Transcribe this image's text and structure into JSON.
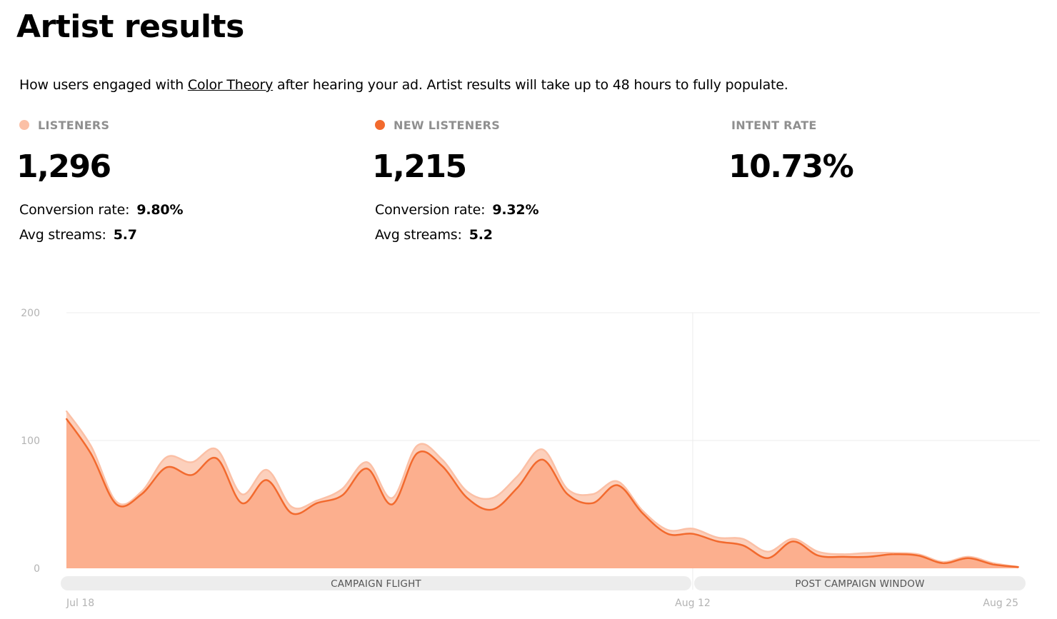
{
  "page": {
    "title": "Artist results",
    "intro_prefix": "How users engaged with ",
    "intro_link": "Color Theory",
    "intro_suffix": " after hearing your ad. Artist results will take up to 48 hours to fully populate."
  },
  "metrics": [
    {
      "label": "LISTENERS",
      "value": "1,296",
      "dot_color": "#fbc0a6",
      "conversion_label": "Conversion rate:",
      "conversion_value": "9.80%",
      "avg_label": "Avg streams:",
      "avg_value": "5.7"
    },
    {
      "label": "NEW LISTENERS",
      "value": "1,215",
      "dot_color": "#f26a2e",
      "conversion_label": "Conversion rate:",
      "conversion_value": "9.32%",
      "avg_label": "Avg streams:",
      "avg_value": "5.2"
    },
    {
      "label": "INTENT RATE",
      "value": "10.73%"
    }
  ],
  "colors": {
    "listeners": "#fbc0a6",
    "new_listeners_line": "#f26a2e",
    "new_listeners_fill": "#fcaf8e",
    "grid": "#ececec",
    "period_bar": "#ededed"
  },
  "chart_data": {
    "type": "area",
    "x": [
      "Jul 18",
      "Jul 19",
      "Jul 20",
      "Jul 21",
      "Jul 22",
      "Jul 23",
      "Jul 24",
      "Jul 25",
      "Jul 26",
      "Jul 27",
      "Jul 28",
      "Jul 29",
      "Jul 30",
      "Jul 31",
      "Aug 1",
      "Aug 2",
      "Aug 3",
      "Aug 4",
      "Aug 5",
      "Aug 6",
      "Aug 7",
      "Aug 8",
      "Aug 9",
      "Aug 10",
      "Aug 11",
      "Aug 12",
      "Aug 13",
      "Aug 14",
      "Aug 15",
      "Aug 16",
      "Aug 17",
      "Aug 18",
      "Aug 19",
      "Aug 20",
      "Aug 21",
      "Aug 22",
      "Aug 23",
      "Aug 24",
      "Aug 25"
    ],
    "x_tick_labels": [
      "Jul 18",
      "Aug 12",
      "Aug 25"
    ],
    "series": [
      {
        "name": "LISTENERS",
        "values": [
          123,
          95,
          52,
          60,
          87,
          83,
          93,
          58,
          77,
          48,
          53,
          62,
          83,
          55,
          96,
          85,
          60,
          55,
          72,
          93,
          62,
          58,
          68,
          45,
          30,
          31,
          24,
          23,
          13,
          23,
          13,
          11,
          12,
          12,
          11,
          5,
          9,
          4,
          1
        ]
      },
      {
        "name": "NEW LISTENERS",
        "values": [
          117,
          89,
          50,
          58,
          79,
          73,
          86,
          51,
          69,
          43,
          51,
          57,
          78,
          50,
          90,
          80,
          55,
          46,
          63,
          85,
          58,
          51,
          65,
          43,
          27,
          27,
          21,
          18,
          8,
          21,
          10,
          9,
          9,
          11,
          10,
          4,
          8,
          3,
          1
        ]
      }
    ],
    "ylim": [
      0,
      200
    ],
    "y_ticks": [
      0,
      100,
      200
    ],
    "grid": true,
    "periods": [
      {
        "label": "CAMPAIGN FLIGHT",
        "start": "Jul 18",
        "end": "Aug 12"
      },
      {
        "label": "POST CAMPAIGN WINDOW",
        "start": "Aug 12",
        "end": "Aug 25"
      }
    ]
  }
}
